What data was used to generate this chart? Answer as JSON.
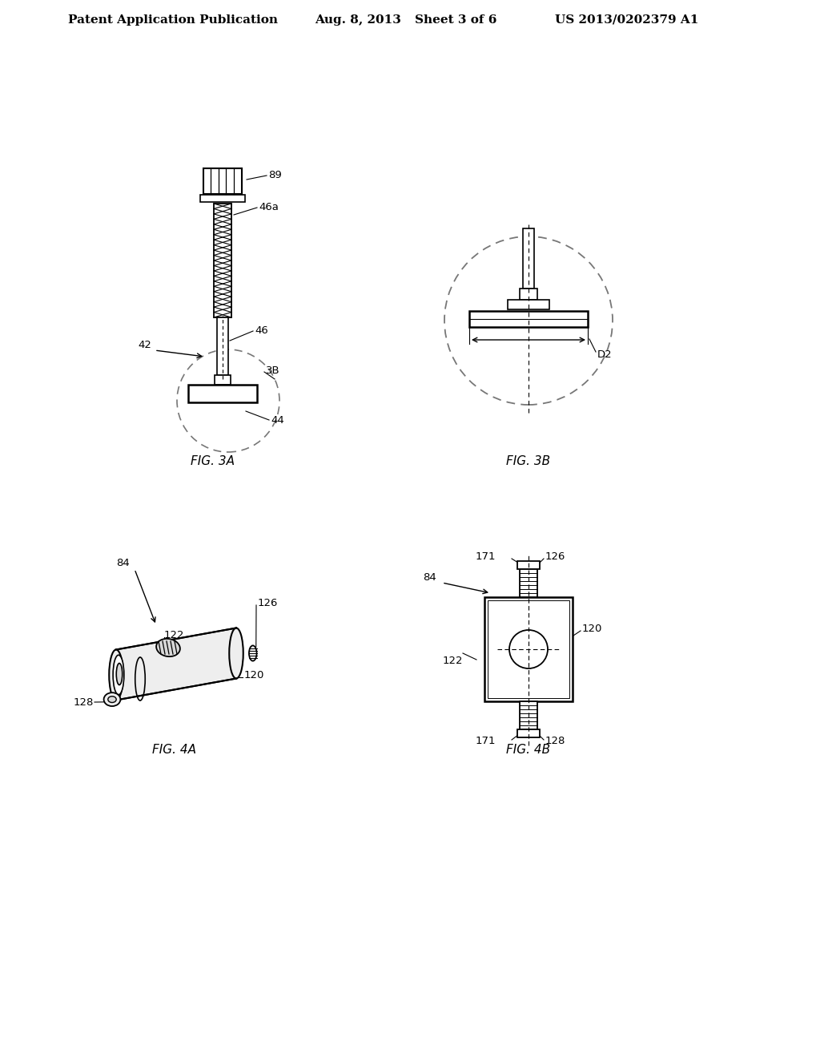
{
  "bg_color": "#ffffff",
  "header_text": "Patent Application Publication",
  "header_date": "Aug. 8, 2013",
  "header_sheet": "Sheet 3 of 6",
  "header_patent": "US 2013/0202379 A1",
  "fig3a_label": "FIG. 3A",
  "fig3b_label": "FIG. 3B",
  "fig4a_label": "FIG. 4A",
  "fig4b_label": "FIG. 4B",
  "line_color": "#000000",
  "dashed_color": "#777777",
  "gray_fill": "#d8d8d8",
  "light_gray": "#eeeeee"
}
